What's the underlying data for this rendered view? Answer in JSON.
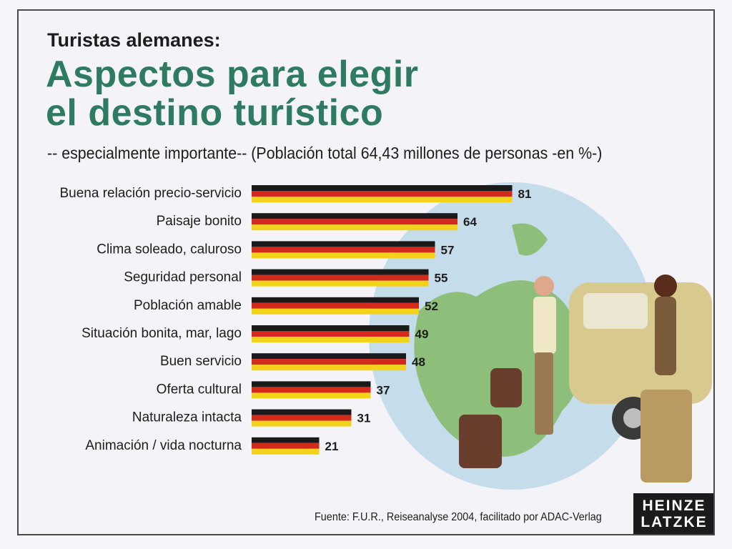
{
  "header": {
    "supertitle": "Turistas alemanes:",
    "title_line1": "Aspectos para elegir",
    "title_line2": "el destino turístico",
    "subtitle": "-- especialmente importante-- (Población total 64,43 millones de personas -en %-)"
  },
  "chart_data": {
    "type": "bar",
    "orientation": "horizontal",
    "categories": [
      "Buena relación precio-servicio",
      "Paisaje bonito",
      "Clima soleado, caluroso",
      "Seguridad personal",
      "Población amable",
      "Situación bonita, mar, lago",
      "Buen servicio",
      "Oferta cultural",
      "Naturaleza intacta",
      "Animación / vida nocturna"
    ],
    "values": [
      81,
      64,
      57,
      55,
      52,
      49,
      48,
      37,
      31,
      21
    ],
    "bar_colors": [
      "#1a1a1a",
      "#d42a1e",
      "#f3d21a"
    ],
    "xlim": [
      0,
      100
    ]
  },
  "footer": {
    "source": "Fuente: F.U.R., Reiseanalyse 2004, facilitado por ADAC-Verlag",
    "logo_line1": "HEINZE",
    "logo_line2": "LATZKE"
  }
}
